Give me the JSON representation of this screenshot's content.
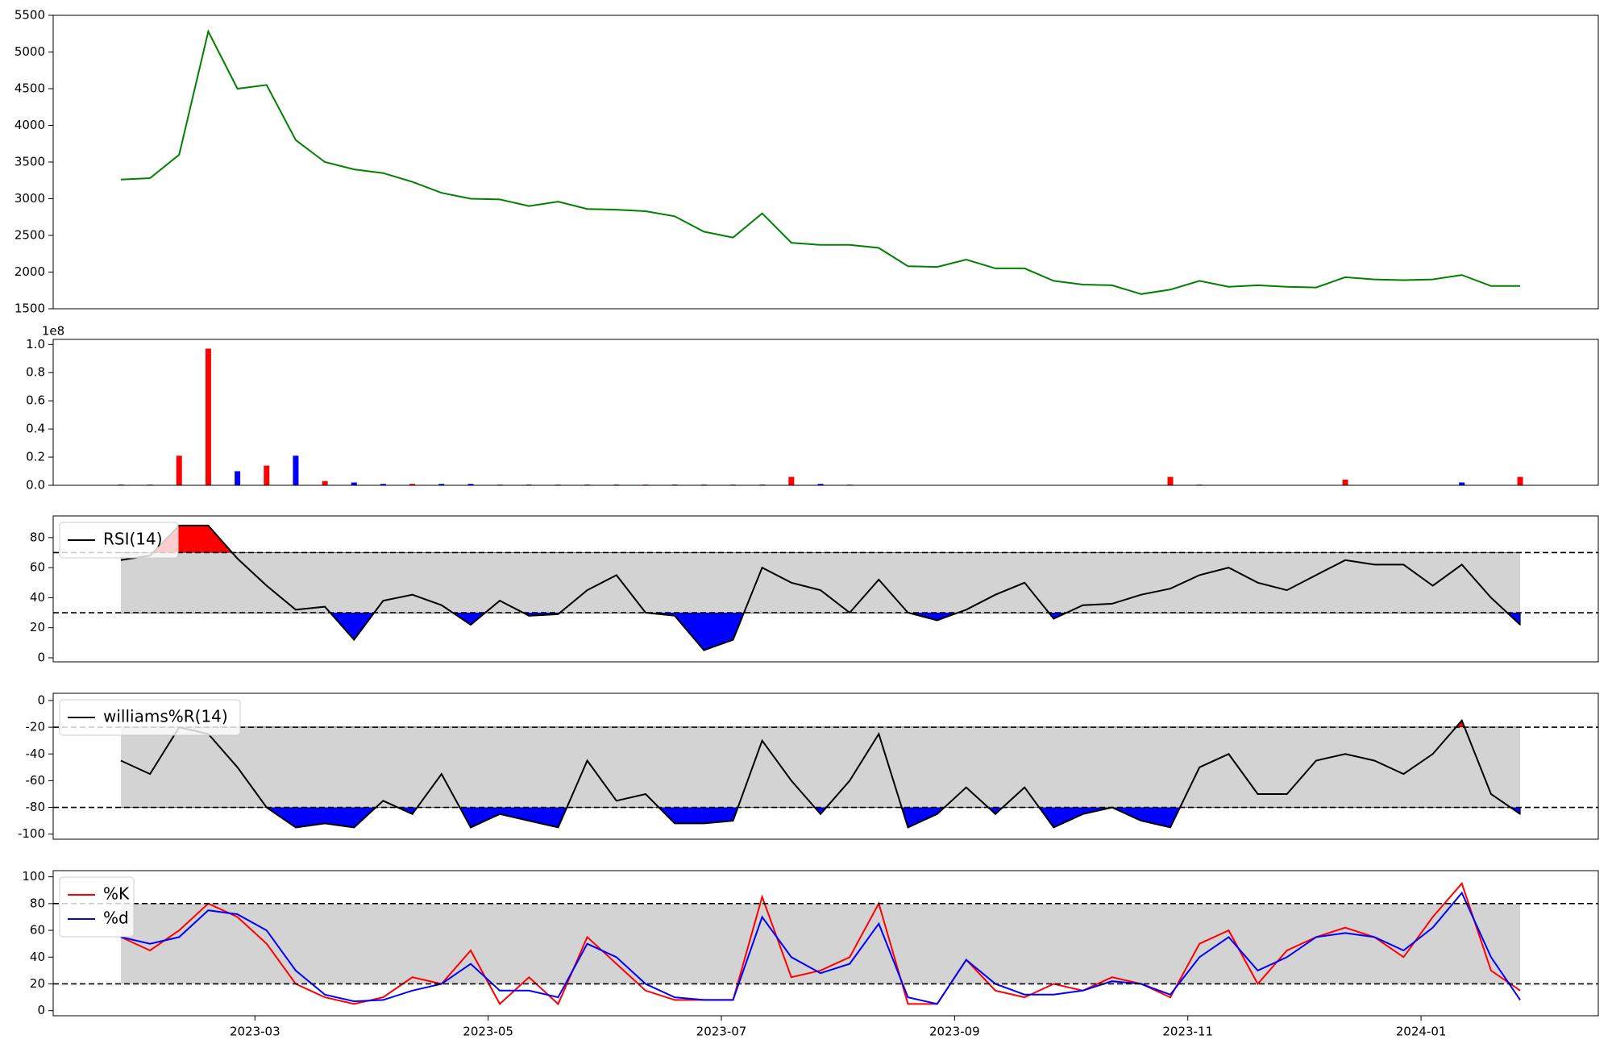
{
  "chart_data": [
    {
      "type": "line",
      "x": [
        0.85,
        1.1,
        1.35,
        1.6,
        1.85,
        2.1,
        2.35,
        2.6,
        2.85,
        3.1,
        3.35,
        3.6,
        3.85,
        4.1,
        4.35,
        4.6,
        4.85,
        5.1,
        5.35,
        5.6,
        5.85,
        6.1,
        6.35,
        6.6,
        6.85,
        7.1,
        7.35,
        7.6,
        7.85,
        8.1,
        8.35,
        8.6,
        8.85,
        9.1,
        9.35,
        9.6,
        9.85,
        10.1,
        10.35,
        10.6,
        10.85,
        11.1,
        11.35,
        11.6,
        11.85,
        12.1,
        12.35,
        12.6,
        12.85
      ],
      "values": [
        3260,
        3280,
        3600,
        5280,
        4500,
        4550,
        3800,
        3500,
        3400,
        3350,
        3230,
        3080,
        3000,
        2990,
        2900,
        2960,
        2860,
        2850,
        2830,
        2760,
        2550,
        2470,
        2800,
        2400,
        2370,
        2370,
        2330,
        2080,
        2070,
        2170,
        2050,
        2050,
        1880,
        1830,
        1820,
        1700,
        1760,
        1880,
        1800,
        1820,
        1800,
        1790,
        1930,
        1900,
        1890,
        1900,
        1960,
        1810,
        1810
      ],
      "color": "green",
      "xlim": [
        0.27,
        13.52
      ],
      "ylim": [
        1500,
        5500
      ],
      "yticks": [
        1500,
        2000,
        2500,
        3000,
        3500,
        4000,
        4500,
        5000,
        5500
      ]
    },
    {
      "type": "bar",
      "x": [
        0.85,
        1.1,
        1.35,
        1.6,
        1.85,
        2.1,
        2.35,
        2.6,
        2.85,
        3.1,
        3.35,
        3.6,
        3.85,
        4.1,
        4.35,
        4.6,
        4.85,
        5.1,
        5.35,
        5.6,
        5.85,
        6.1,
        6.35,
        6.6,
        6.85,
        7.1,
        7.35,
        7.6,
        7.85,
        8.1,
        8.35,
        8.6,
        8.85,
        9.1,
        9.35,
        9.6,
        9.85,
        10.1,
        10.35,
        10.6,
        10.85,
        11.1,
        11.35,
        11.6,
        11.85,
        12.1,
        12.35,
        12.6,
        12.85
      ],
      "values": [
        0.005,
        0.005,
        0.21,
        0.97,
        0.1,
        0.14,
        0.21,
        0.03,
        0.02,
        0.01,
        0.01,
        0.01,
        0.01,
        0.005,
        0.005,
        0.005,
        0.005,
        0.005,
        0.005,
        0.005,
        0.005,
        0.005,
        0.005,
        0.06,
        0.01,
        0.005,
        0.002,
        0.002,
        0.002,
        0.002,
        0.002,
        0.002,
        0.002,
        0.002,
        0.002,
        0.002,
        0.06,
        0.005,
        0.002,
        0.002,
        0.002,
        0.002,
        0.04,
        0.002,
        0.002,
        0.002,
        0.02,
        0.002,
        0.06
      ],
      "colors": [
        "blue",
        "red",
        "red",
        "red",
        "blue",
        "red",
        "blue",
        "red",
        "blue",
        "blue",
        "red",
        "blue",
        "blue",
        "red",
        "blue",
        "red",
        "blue",
        "blue",
        "red",
        "blue",
        "blue",
        "red",
        "blue",
        "red",
        "blue",
        "red",
        "blue",
        "red",
        "blue",
        "red",
        "blue",
        "red",
        "blue",
        "red",
        "blue",
        "red",
        "red",
        "red",
        "blue",
        "red",
        "blue",
        "red",
        "red",
        "blue",
        "red",
        "blue",
        "blue",
        "red",
        "red"
      ],
      "xlim": [
        0.27,
        13.52
      ],
      "ylim": [
        0,
        1.036
      ],
      "y_offset_label": "1e8",
      "yticks": [
        {
          "value": 0,
          "label": "0.0"
        },
        {
          "value": 0.2,
          "label": "0.2"
        },
        {
          "value": 0.4,
          "label": "0.4"
        },
        {
          "value": 0.6,
          "label": "0.6"
        },
        {
          "value": 0.8,
          "label": "0.8"
        },
        {
          "value": 1,
          "label": "1.0"
        }
      ]
    },
    {
      "type": "line",
      "x": [
        0.85,
        1.1,
        1.35,
        1.6,
        1.85,
        2.1,
        2.35,
        2.6,
        2.85,
        3.1,
        3.35,
        3.6,
        3.85,
        4.1,
        4.35,
        4.6,
        4.85,
        5.1,
        5.35,
        5.6,
        5.85,
        6.1,
        6.35,
        6.6,
        6.85,
        7.1,
        7.35,
        7.6,
        7.85,
        8.1,
        8.35,
        8.6,
        8.85,
        9.1,
        9.35,
        9.6,
        9.85,
        10.1,
        10.35,
        10.6,
        10.85,
        11.1,
        11.35,
        11.6,
        11.85,
        12.1,
        12.35,
        12.6,
        12.85
      ],
      "series": [
        {
          "name": "RSI(14)",
          "color": "black",
          "values": [
            65,
            68,
            88,
            88,
            66,
            48,
            32,
            34,
            12,
            38,
            42,
            35,
            22,
            38,
            28,
            29,
            45,
            55,
            30,
            28,
            5,
            12,
            60,
            50,
            45,
            30,
            52,
            30,
            25,
            32,
            42,
            50,
            26,
            35,
            36,
            42,
            46,
            55,
            60,
            50,
            45,
            55,
            65,
            62,
            62,
            48,
            62,
            40,
            22
          ]
        }
      ],
      "bands": [
        30,
        70
      ],
      "band_color": "#d3d3d3",
      "over_color": "red",
      "under_color": "blue",
      "legend": "upper left",
      "xlim": [
        0.27,
        13.52
      ],
      "ylim": [
        -2.7,
        94.4
      ],
      "yticks": [
        0,
        20,
        40,
        60,
        80
      ]
    },
    {
      "type": "line",
      "x": [
        0.85,
        1.1,
        1.35,
        1.6,
        1.85,
        2.1,
        2.35,
        2.6,
        2.85,
        3.1,
        3.35,
        3.6,
        3.85,
        4.1,
        4.35,
        4.6,
        4.85,
        5.1,
        5.35,
        5.6,
        5.85,
        6.1,
        6.35,
        6.6,
        6.85,
        7.1,
        7.35,
        7.6,
        7.85,
        8.1,
        8.35,
        8.6,
        8.85,
        9.1,
        9.35,
        9.6,
        9.85,
        10.1,
        10.35,
        10.6,
        10.85,
        11.1,
        11.35,
        11.6,
        11.85,
        12.1,
        12.35,
        12.6,
        12.85
      ],
      "series": [
        {
          "name": "williams%R(14)",
          "color": "black",
          "values": [
            -45,
            -55,
            -20,
            -25,
            -50,
            -80,
            -95,
            -92,
            -95,
            -75,
            -85,
            -55,
            -95,
            -85,
            -90,
            -95,
            -45,
            -75,
            -70,
            -92,
            -92,
            -90,
            -30,
            -60,
            -85,
            -60,
            -25,
            -95,
            -85,
            -65,
            -85,
            -65,
            -95,
            -85,
            -80,
            -90,
            -95,
            -50,
            -40,
            -70,
            -70,
            -45,
            -40,
            -45,
            -55,
            -40,
            -15,
            -70,
            -85
          ]
        }
      ],
      "bands": [
        -80,
        -20
      ],
      "band_color": "#d3d3d3",
      "over_color": "red",
      "under_color": "blue",
      "legend": "upper left",
      "xlim": [
        0.27,
        13.52
      ],
      "ylim": [
        -103.8,
        5.4
      ],
      "yticks": [
        -100,
        -80,
        -60,
        -40,
        -20,
        0
      ]
    },
    {
      "type": "line",
      "x": [
        0.85,
        1.1,
        1.35,
        1.6,
        1.85,
        2.1,
        2.35,
        2.6,
        2.85,
        3.1,
        3.35,
        3.6,
        3.85,
        4.1,
        4.35,
        4.6,
        4.85,
        5.1,
        5.35,
        5.6,
        5.85,
        6.1,
        6.35,
        6.6,
        6.85,
        7.1,
        7.35,
        7.6,
        7.85,
        8.1,
        8.35,
        8.6,
        8.85,
        9.1,
        9.35,
        9.6,
        9.85,
        10.1,
        10.35,
        10.6,
        10.85,
        11.1,
        11.35,
        11.6,
        11.85,
        12.1,
        12.35,
        12.6,
        12.85
      ],
      "series": [
        {
          "name": "%K",
          "color": "red",
          "values": [
            55,
            45,
            60,
            80,
            70,
            50,
            20,
            10,
            5,
            10,
            25,
            20,
            45,
            5,
            25,
            5,
            55,
            35,
            15,
            8,
            8,
            8,
            85,
            25,
            30,
            40,
            80,
            5,
            5,
            38,
            15,
            10,
            20,
            15,
            25,
            20,
            10,
            50,
            60,
            20,
            45,
            55,
            62,
            55,
            40,
            70,
            95,
            30,
            15
          ]
        },
        {
          "name": "%d",
          "color": "blue",
          "values": [
            55,
            50,
            55,
            75,
            72,
            60,
            30,
            12,
            7,
            8,
            15,
            20,
            35,
            15,
            15,
            10,
            50,
            40,
            20,
            10,
            8,
            8,
            70,
            40,
            28,
            35,
            65,
            10,
            5,
            38,
            20,
            12,
            12,
            15,
            22,
            20,
            12,
            40,
            55,
            30,
            40,
            55,
            58,
            55,
            45,
            62,
            88,
            40,
            8
          ]
        }
      ],
      "bands": [
        20,
        80
      ],
      "band_color": "#d3d3d3",
      "legend": "upper left",
      "xlim": [
        0.27,
        13.52
      ],
      "ylim": [
        -3.8,
        104.6
      ],
      "yticks": [
        0,
        20,
        40,
        60,
        80,
        100
      ],
      "xticks": [
        {
          "value": 2,
          "label": "2023-03"
        },
        {
          "value": 4,
          "label": "2023-05"
        },
        {
          "value": 6,
          "label": "2023-07"
        },
        {
          "value": 8,
          "label": "2023-09"
        },
        {
          "value": 10,
          "label": "2023-11"
        },
        {
          "value": 12,
          "label": "2024-01"
        }
      ]
    }
  ]
}
